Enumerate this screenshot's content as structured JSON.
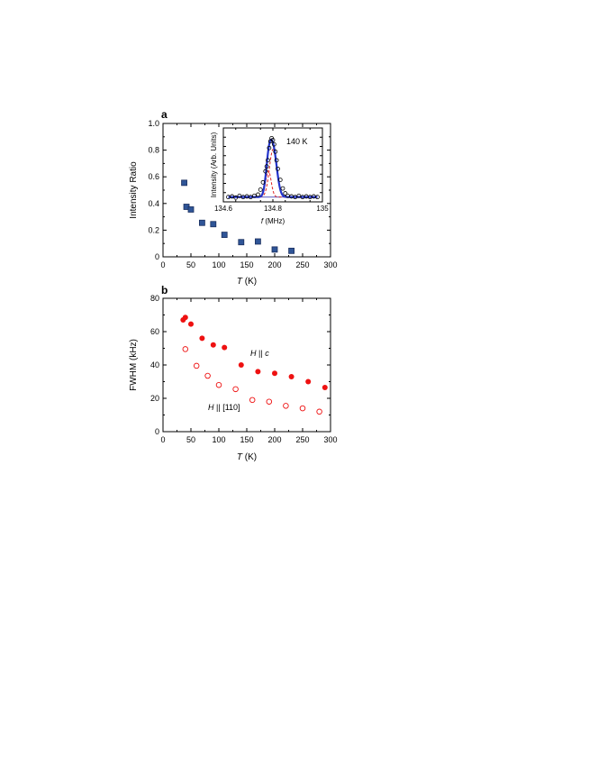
{
  "chart_data": [
    {
      "panel": "a",
      "type": "scatter",
      "xlabel": {
        "var": "T",
        "unit": "(K)"
      },
      "ylabel": "Intensity Ratio",
      "xlim": [
        0,
        300
      ],
      "ylim": [
        0,
        1.0
      ],
      "xticks": [
        "0",
        "50",
        "100",
        "150",
        "200",
        "250",
        "300"
      ],
      "yticks": [
        "0",
        "0.2",
        "0.4",
        "0.6",
        "0.8",
        "1.0"
      ],
      "grid": false,
      "marker_color": "#2f5597",
      "marker_edge": "#1b2f5e",
      "series": [
        {
          "marker": "square",
          "points": [
            {
              "x": 38,
              "y": 0.555
            },
            {
              "x": 42,
              "y": 0.375
            },
            {
              "x": 50,
              "y": 0.355
            },
            {
              "x": 70,
              "y": 0.255
            },
            {
              "x": 90,
              "y": 0.245
            },
            {
              "x": 110,
              "y": 0.165
            },
            {
              "x": 140,
              "y": 0.11
            },
            {
              "x": 170,
              "y": 0.115
            },
            {
              "x": 200,
              "y": 0.055
            },
            {
              "x": 230,
              "y": 0.045
            }
          ]
        }
      ],
      "inset": {
        "type": "line",
        "annotation": "140 K",
        "xlabel": {
          "var": "f",
          "unit": "(MHz)"
        },
        "ylabel": "Intensity (Arb. Units)",
        "xlim": [
          134.6,
          135.0
        ],
        "xticks": [
          "134.6",
          "134.8",
          "135"
        ],
        "colors": {
          "data": "#000000",
          "fit": "#2233cc",
          "components": "#dd2222",
          "baseline": "#7a7acc"
        },
        "data_points": [
          {
            "x": 134.62,
            "y": 0.02
          },
          {
            "x": 134.635,
            "y": 0.03
          },
          {
            "x": 134.65,
            "y": 0.01
          },
          {
            "x": 134.665,
            "y": 0.04
          },
          {
            "x": 134.68,
            "y": 0.02
          },
          {
            "x": 134.695,
            "y": 0.03
          },
          {
            "x": 134.71,
            "y": 0.02
          },
          {
            "x": 134.725,
            "y": 0.04
          },
          {
            "x": 134.74,
            "y": 0.06
          },
          {
            "x": 134.75,
            "y": 0.14
          },
          {
            "x": 134.76,
            "y": 0.26
          },
          {
            "x": 134.77,
            "y": 0.44
          },
          {
            "x": 134.775,
            "y": 0.52
          },
          {
            "x": 134.78,
            "y": 0.62
          },
          {
            "x": 134.785,
            "y": 0.82
          },
          {
            "x": 134.79,
            "y": 0.93
          },
          {
            "x": 134.795,
            "y": 0.98
          },
          {
            "x": 134.8,
            "y": 0.95
          },
          {
            "x": 134.805,
            "y": 0.88
          },
          {
            "x": 134.81,
            "y": 0.76
          },
          {
            "x": 134.815,
            "y": 0.62
          },
          {
            "x": 134.82,
            "y": 0.48
          },
          {
            "x": 134.83,
            "y": 0.3
          },
          {
            "x": 134.84,
            "y": 0.16
          },
          {
            "x": 134.85,
            "y": 0.08
          },
          {
            "x": 134.86,
            "y": 0.04
          },
          {
            "x": 134.875,
            "y": 0.03
          },
          {
            "x": 134.89,
            "y": 0.02
          },
          {
            "x": 134.905,
            "y": 0.04
          },
          {
            "x": 134.92,
            "y": 0.02
          },
          {
            "x": 134.935,
            "y": 0.03
          },
          {
            "x": 134.95,
            "y": 0.02
          },
          {
            "x": 134.965,
            "y": 0.03
          },
          {
            "x": 134.98,
            "y": 0.02
          }
        ],
        "components": [
          {
            "center": 134.782,
            "sigma": 0.011,
            "amplitude": 0.43
          },
          {
            "center": 134.801,
            "sigma": 0.015,
            "amplitude": 0.78
          }
        ],
        "baseline": 0.02
      }
    },
    {
      "panel": "b",
      "type": "scatter",
      "xlabel": {
        "var": "T",
        "unit": "(K)"
      },
      "ylabel": "FWHM (kHz)",
      "xlim": [
        0,
        300
      ],
      "ylim": [
        0,
        80
      ],
      "xticks": [
        "0",
        "50",
        "100",
        "150",
        "200",
        "250",
        "300"
      ],
      "yticks": [
        "0",
        "20",
        "40",
        "60",
        "80"
      ],
      "grid": false,
      "marker_color": "#ee1111",
      "series": [
        {
          "label": {
            "var": "H",
            "rel": " || ",
            "dir": "c"
          },
          "marker": "filled-circle",
          "points": [
            {
              "x": 36,
              "y": 67
            },
            {
              "x": 40,
              "y": 68.5
            },
            {
              "x": 50,
              "y": 64.5
            },
            {
              "x": 70,
              "y": 56
            },
            {
              "x": 90,
              "y": 52
            },
            {
              "x": 110,
              "y": 50.5
            },
            {
              "x": 140,
              "y": 40
            },
            {
              "x": 170,
              "y": 36
            },
            {
              "x": 200,
              "y": 35
            },
            {
              "x": 230,
              "y": 33
            },
            {
              "x": 260,
              "y": 30
            },
            {
              "x": 290,
              "y": 26.5
            }
          ]
        },
        {
          "label": {
            "var": "H",
            "rel": " || ",
            "dir": "[110]"
          },
          "marker": "open-circle",
          "points": [
            {
              "x": 40,
              "y": 49.5
            },
            {
              "x": 60,
              "y": 39.5
            },
            {
              "x": 80,
              "y": 33.5
            },
            {
              "x": 100,
              "y": 28
            },
            {
              "x": 130,
              "y": 25.5
            },
            {
              "x": 160,
              "y": 19
            },
            {
              "x": 190,
              "y": 18
            },
            {
              "x": 220,
              "y": 15.5
            },
            {
              "x": 250,
              "y": 14
            },
            {
              "x": 280,
              "y": 12
            }
          ]
        }
      ]
    }
  ]
}
